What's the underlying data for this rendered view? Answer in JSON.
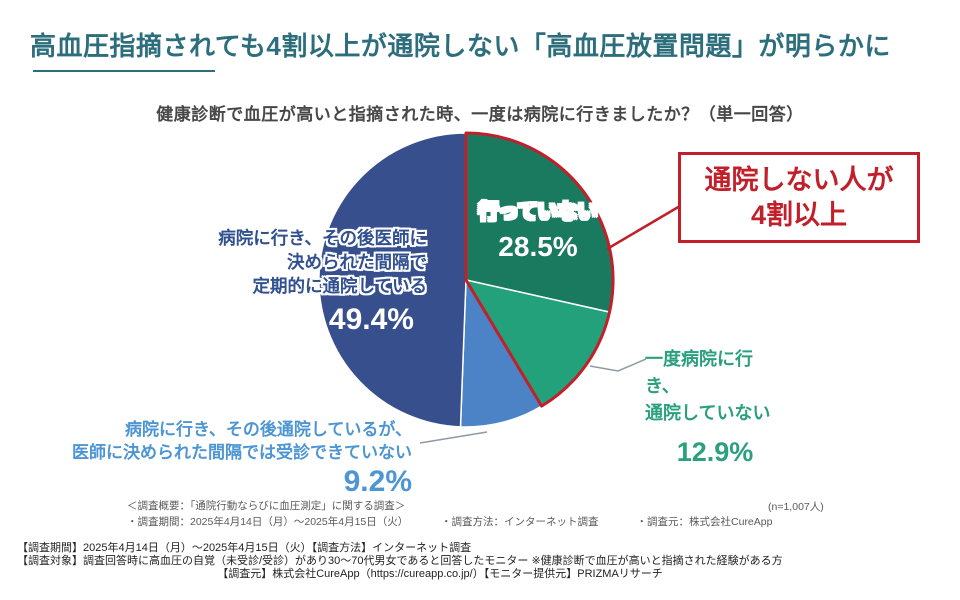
{
  "page": {
    "title": "高血圧指摘されても4割以上が通院しない「高血圧放置問題」が明らかに"
  },
  "colors": {
    "title_teal": "#2D6E7D",
    "accent_red": "#C1202B",
    "question_gray": "#474747",
    "green_dark": "#1A7A60",
    "green_light": "#23A17A",
    "blue_light": "#4C83C6",
    "blue_dark": "#374F8D",
    "label_green": "#2AA07E",
    "label_blue": "#4D96D3",
    "label_navy": "#31508F"
  },
  "chart_data": {
    "type": "pie",
    "title": "健康診断で血圧が高いと指摘された時、一度は病院に行きましたか？（単一回答）",
    "sample_size": "(n=1,007人)",
    "start_angle": "top",
    "direction": "clockwise",
    "legend_position": "none",
    "segments": [
      {
        "label": "行っていない",
        "value": 28.5,
        "color": "#1A7A60"
      },
      {
        "label": "一度病院に行き、通院していない",
        "value": 12.9,
        "color": "#23A17A"
      },
      {
        "label": "病院に行き、その後通院しているが、医師に決められた間隔では受診できていない",
        "value": 9.2,
        "color": "#4C83C6"
      },
      {
        "label": "病院に行き、その後医師に決められた間隔で定期的に通院している",
        "value": 49.4,
        "color": "#374F8D"
      }
    ],
    "highlight": {
      "segments": [
        0,
        1
      ],
      "color": "#C1202B",
      "annotation": "通院しない人が4割以上"
    }
  },
  "display": {
    "no_visit": {
      "name": "行っていない",
      "value": "28.5%"
    },
    "one_visit": {
      "line1": "一度病院に行き、",
      "line2": "通院していない",
      "value": "12.9%"
    },
    "irregular": {
      "line1": "病院に行き、その後通院しているが、",
      "line2": "医師に決められた間隔では受診できていない",
      "value": "9.2%"
    },
    "regular": {
      "line1": "病院に行き、その後医師に",
      "line2": "決められた間隔で",
      "line3": "定期的に通院している",
      "value": "49.4%"
    }
  },
  "callout": {
    "line1": "通院しない人が",
    "line2": "4割以上"
  },
  "footnote": {
    "overview": "＜調査概要：「通院行動ならびに血圧測定」に関する調査＞",
    "period": "・調査期間：2025年4月14日（月）～2025年4月15日（火）",
    "method": "・調査方法：インターネット調査",
    "source": "・調査元：株式会社CureApp",
    "sample_size": "(n=1,007人)"
  },
  "footer": {
    "line1": "【調査期間】2025年4月14日（月）～2025年4月15日（火）【調査方法】インターネット調査",
    "line2": "【調査対象】調査回答時に高血圧の自覚（未受診/受診）があり30～70代男女であると回答したモニター ※健康診断で血圧が高いと指摘された経験がある方",
    "line3": "【調査元】株式会社CureApp（https://cureapp.co.jp/）【モニター提供元】PRIZMAリサーチ"
  }
}
